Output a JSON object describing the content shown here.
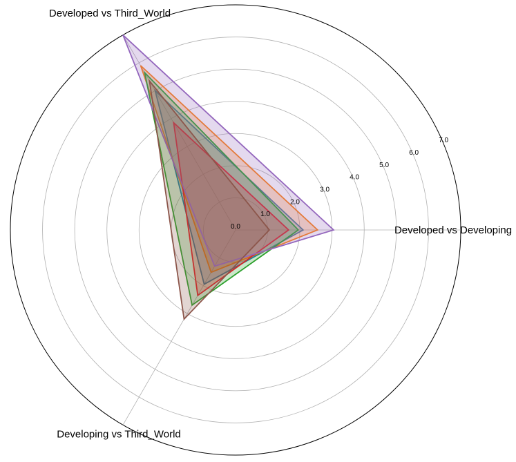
{
  "chart_data": {
    "type": "radar",
    "axes": [
      "Developed vs Developing",
      "Developed vs Third_World",
      "Developing vs Third_World"
    ],
    "rlim": [
      0,
      7
    ],
    "ticks": [
      0,
      1,
      2,
      3,
      4,
      5,
      6,
      7
    ],
    "tick_labels": [
      "0.0",
      "1.0",
      "2.0",
      "3.0",
      "4.0",
      "5.0",
      "6.0",
      "7.0"
    ],
    "grid": true,
    "series": [
      {
        "color": "#1f77b4",
        "values": [
          2.1,
          5.0,
          1.95
        ]
      },
      {
        "color": "#ff7f0e",
        "values": [
          2.55,
          5.9,
          1.52
        ]
      },
      {
        "color": "#2ca02c",
        "values": [
          1.95,
          5.65,
          2.7
        ]
      },
      {
        "color": "#d62728",
        "values": [
          1.65,
          3.85,
          2.35
        ]
      },
      {
        "color": "#9467bd",
        "values": [
          3.05,
          7.0,
          1.3
        ]
      },
      {
        "color": "#8c564b",
        "values": [
          1.05,
          5.35,
          3.2
        ]
      }
    ]
  }
}
